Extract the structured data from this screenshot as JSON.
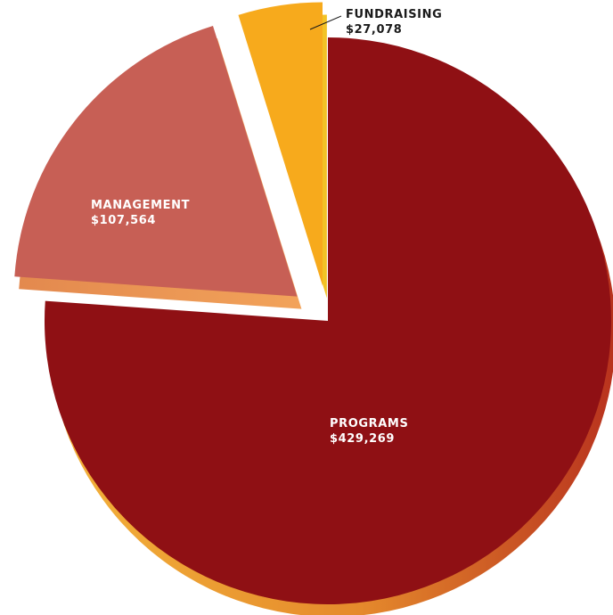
{
  "chart_data": {
    "type": "pie",
    "title": "",
    "slices": [
      {
        "label": "PROGRAMS",
        "value_text": "$429,269",
        "value": 429269,
        "color": "#8f1014",
        "side_color": "#e0892f"
      },
      {
        "label": "MANAGEMENT",
        "value_text": "$107,564",
        "value": 107564,
        "color": "#c75f55",
        "side_color": "#e8894f"
      },
      {
        "label": "FUNDRAISING",
        "value_text": "$27,078",
        "value": 27078,
        "color": "#f7aa1c",
        "side_color": "#f2c326"
      }
    ],
    "exploded": [
      "MANAGEMENT",
      "FUNDRAISING"
    ],
    "legend": "none"
  }
}
